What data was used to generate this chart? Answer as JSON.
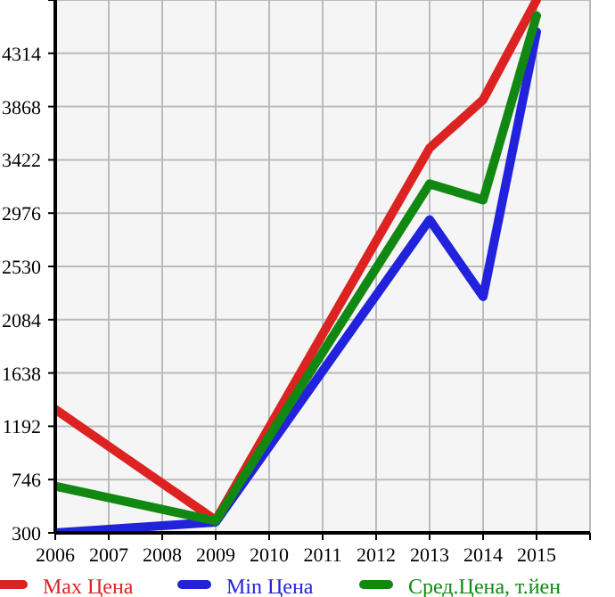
{
  "chart_data": {
    "type": "line",
    "x": [
      2006,
      2009,
      2013,
      2014,
      2015
    ],
    "xlim": [
      2006,
      2016
    ],
    "xticks": [
      2006,
      2007,
      2008,
      2009,
      2010,
      2011,
      2012,
      2013,
      2014,
      2015,
      {
        "value": 2016,
        "label": null
      }
    ],
    "ylim": [
      300,
      4760
    ],
    "yticks": [
      300,
      746,
      1192,
      1638,
      2084,
      2530,
      2976,
      3422,
      3868,
      4314,
      {
        "value": 4760,
        "label": null
      }
    ],
    "grid": true,
    "legend": "bottom",
    "marker": "none",
    "line_style": "solid",
    "series": [
      {
        "name": "Max Цена",
        "color": "#dd2222",
        "values": [
          1334,
          405,
          3521,
          3925,
          4760
        ]
      },
      {
        "name": "Min Цена",
        "color": "#2222dd",
        "values": [
          300,
          390,
          2921,
          2277,
          4494
        ]
      },
      {
        "name": "Сред.Цена, т.йен",
        "color": "#118811",
        "values": [
          690,
          400,
          3221,
          3086,
          4629
        ]
      }
    ]
  }
}
